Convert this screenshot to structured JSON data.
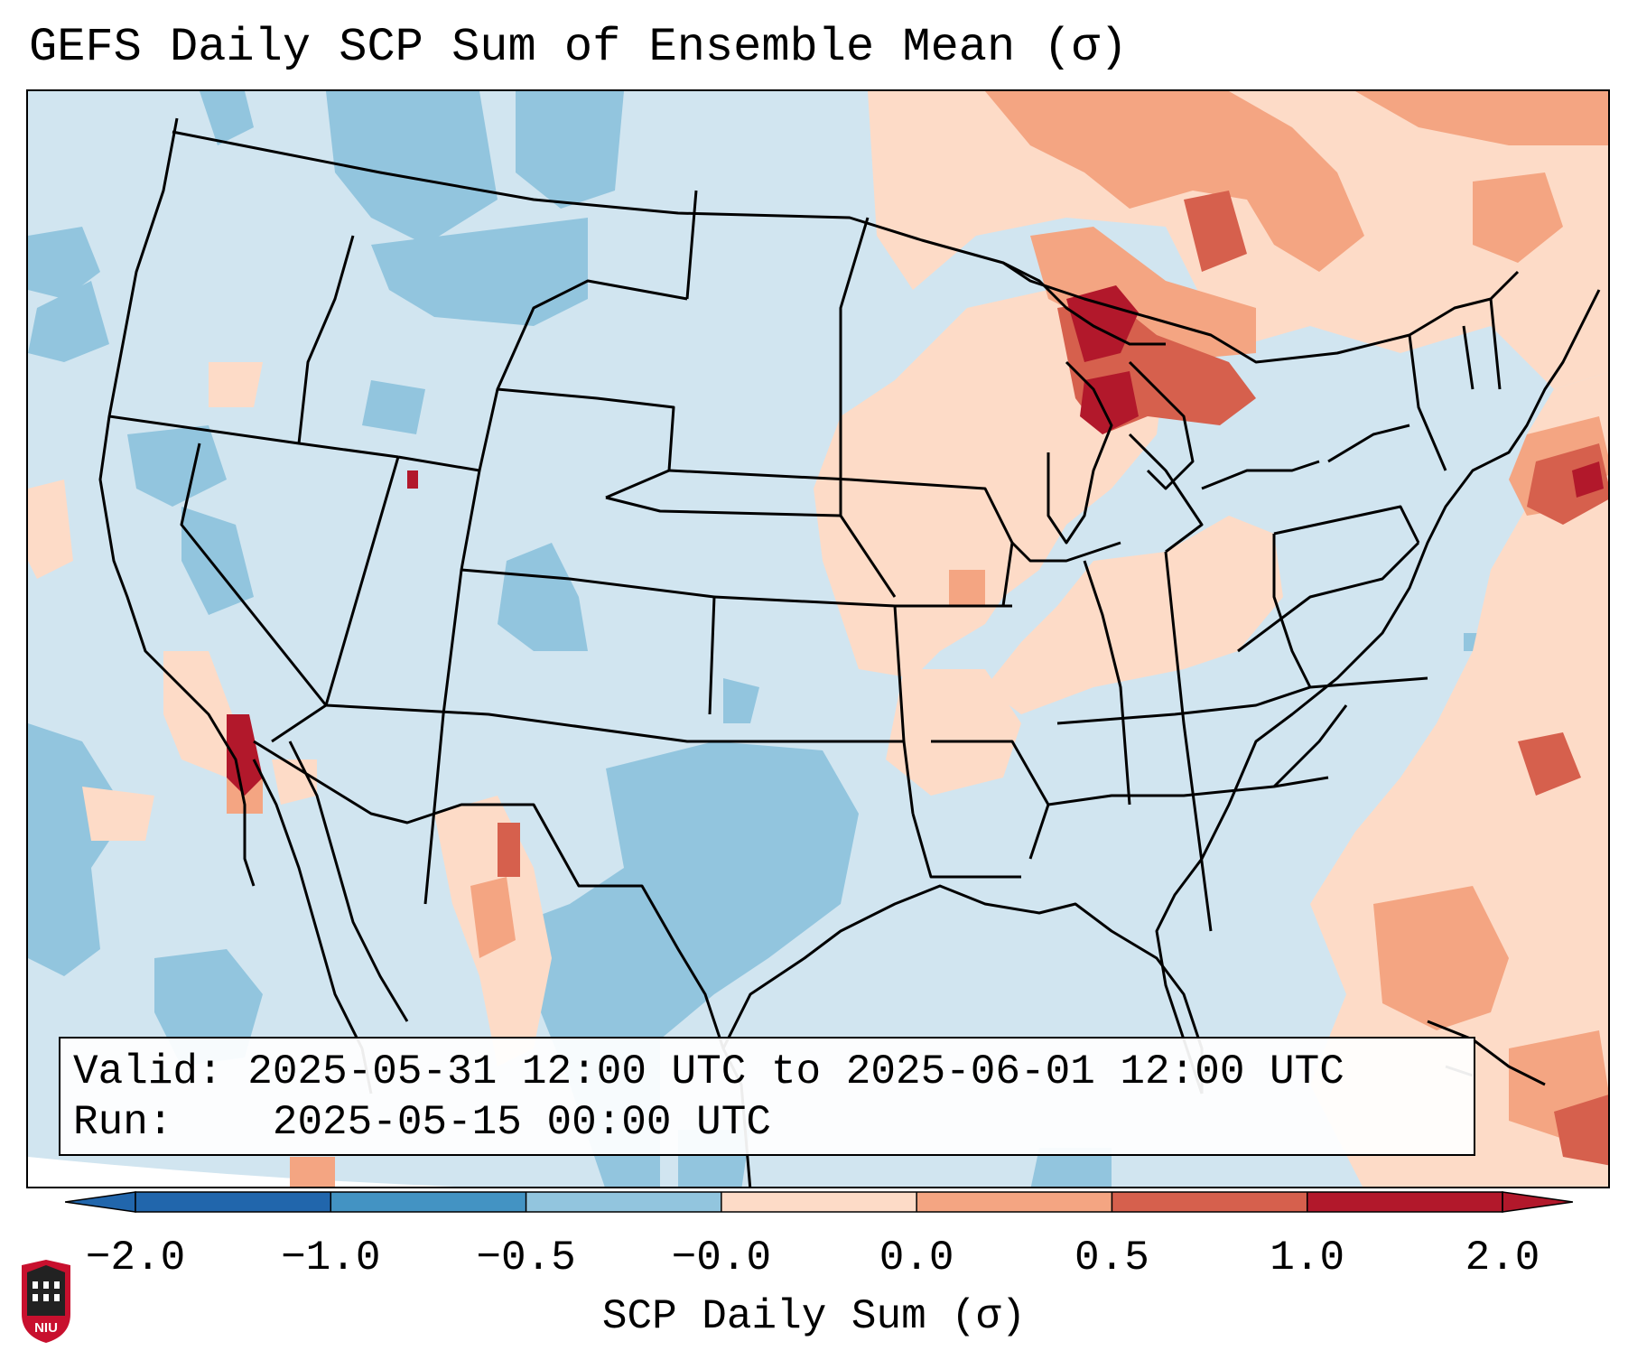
{
  "title": "GEFS Daily SCP Sum of Ensemble Mean (σ)",
  "info": {
    "valid_label": "Valid:",
    "valid_value": "2025-05-31 12:00 UTC to 2025-06-01 12:00 UTC",
    "run_label": "Run:",
    "run_value": "2025-05-15 00:00 UTC"
  },
  "colorbar": {
    "label": "SCP Daily Sum (σ)",
    "ticks": [
      "−2.0",
      "−1.0",
      "−0.5",
      "−0.0",
      "0.0",
      "0.5",
      "1.0",
      "2.0"
    ],
    "colors": [
      "#2166ac",
      "#4393c3",
      "#92c5de",
      "#d1e5f0",
      "#fddbc7",
      "#f4a582",
      "#d6604d",
      "#b2182b"
    ],
    "extend": "both"
  },
  "logo": {
    "text": "NIU",
    "colors": {
      "shield": "#c8102e",
      "tower": "#222222"
    }
  },
  "map_regions": {
    "background_color": "#d1e5f0",
    "positive_anomaly_color": "#fddbc7",
    "moderate_positive_color": "#f4a582",
    "high_positive_color": "#d6604d",
    "peak_color": "#b2182b",
    "negative_color": "#92c5de"
  }
}
